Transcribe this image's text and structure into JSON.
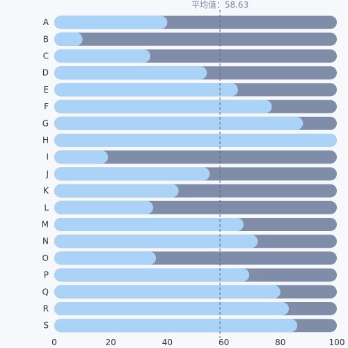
{
  "chart_data": {
    "type": "bar",
    "orientation": "horizontal",
    "categories": [
      "A",
      "B",
      "C",
      "D",
      "E",
      "F",
      "G",
      "H",
      "I",
      "J",
      "K",
      "L",
      "M",
      "N",
      "O",
      "P",
      "Q",
      "R",
      "S"
    ],
    "values": [
      40,
      10,
      34,
      54,
      65,
      77,
      88,
      100,
      19,
      55,
      44,
      35,
      67,
      72,
      36,
      69,
      80,
      83,
      86
    ],
    "max": 100,
    "xlim": [
      0,
      100
    ],
    "xticks": [
      0,
      20,
      40,
      60,
      80,
      100
    ],
    "average": {
      "label": "平均值：58.63",
      "value": 58.63
    },
    "colors": {
      "fill": "#abd3f7",
      "track": "#7f8da8",
      "avg_line": "#5b6b85"
    },
    "grid": false
  }
}
